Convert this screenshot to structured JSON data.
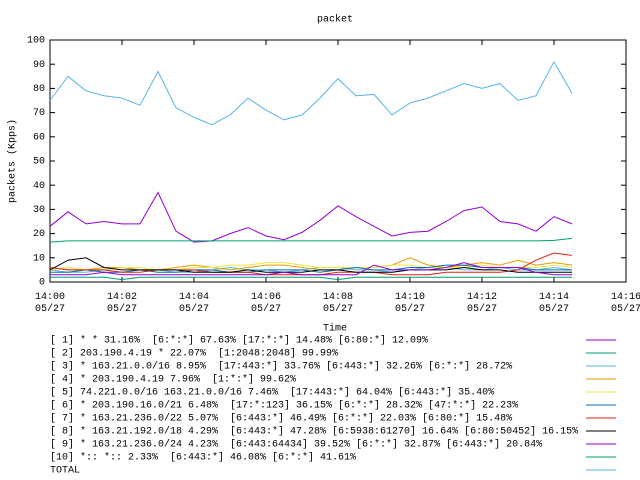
{
  "chart_data": {
    "type": "line",
    "title": "packet",
    "ylabel": "packets (Kpps)",
    "xlabel": "Time",
    "x": [
      "14:00:00",
      "14:00:30",
      "14:01:00",
      "14:01:30",
      "14:02:00",
      "14:02:30",
      "14:03:00",
      "14:03:30",
      "14:04:00",
      "14:04:30",
      "14:05:00",
      "14:05:30",
      "14:06:00",
      "14:06:30",
      "14:07:00",
      "14:07:30",
      "14:08:00",
      "14:08:30",
      "14:09:00",
      "14:09:30",
      "14:10:00",
      "14:10:30",
      "14:11:00",
      "14:11:30",
      "14:12:00",
      "14:12:30",
      "14:13:00",
      "14:13:30",
      "14:14:00",
      "14:14:30"
    ],
    "xlim": [
      "14:00:00",
      "14:16:00"
    ],
    "xticks": [
      {
        "value": "14:00:00",
        "label": "14:00\n05/27"
      },
      {
        "value": "14:02:00",
        "label": "14:02\n05/27"
      },
      {
        "value": "14:04:00",
        "label": "14:04\n05/27"
      },
      {
        "value": "14:06:00",
        "label": "14:06\n05/27"
      },
      {
        "value": "14:08:00",
        "label": "14:08\n05/27"
      },
      {
        "value": "14:10:00",
        "label": "14:10\n05/27"
      },
      {
        "value": "14:12:00",
        "label": "14:12\n05/27"
      },
      {
        "value": "14:14:00",
        "label": "14:14\n05/27"
      },
      {
        "value": "14:16:00",
        "label": "14:16\n05/27"
      }
    ],
    "ylim": [
      0,
      100
    ],
    "yticks": [
      0,
      10,
      20,
      30,
      40,
      50,
      60,
      70,
      80,
      90,
      100
    ],
    "series": [
      {
        "name": "[ 1] * * 31.16%  [6:*:*] 67.63% [17:*:*] 14.48% [6:80:*] 12.09%",
        "color": "#9400d3",
        "values": [
          23,
          29,
          24,
          25,
          24,
          24,
          37,
          21,
          16.5,
          17,
          20,
          22.5,
          19,
          17.5,
          20.5,
          25.5,
          31.5,
          27,
          23,
          19,
          20.5,
          21,
          25,
          29.5,
          31,
          25,
          24,
          21,
          27,
          24
        ]
      },
      {
        "name": "[ 2] 203.190.4.19 * 22.07%  [1:2048:2048] 99.99%",
        "color": "#009e73",
        "values": [
          16.5,
          17,
          17,
          17,
          17,
          17,
          17,
          17,
          17,
          17,
          17,
          17,
          17,
          17,
          17,
          17,
          17,
          17,
          17,
          17,
          17,
          17,
          17,
          17,
          17,
          17,
          17,
          17,
          17.2,
          18
        ]
      },
      {
        "name": "[ 3] * 163.21.0.0/16 8.95%  [17:443:*] 33.76% [6:443:*] 32.26% [6:*:*] 28.72%",
        "color": "#56b4e9",
        "values": [
          5,
          4,
          4,
          5,
          6,
          5,
          5,
          4,
          4,
          5,
          6,
          5,
          5,
          4,
          5,
          6,
          6,
          5,
          5,
          4,
          5,
          6,
          6,
          5,
          5,
          6,
          5,
          5,
          6,
          5
        ]
      },
      {
        "name": "[ 4] * 203.190.4.19 7.96%  [1:*:*] 99.62%",
        "color": "#e69f00",
        "values": [
          6,
          5,
          5,
          6,
          6,
          5,
          5,
          6,
          7,
          6,
          5,
          6,
          7,
          7,
          6,
          5,
          5,
          6,
          6,
          7,
          10,
          7,
          6,
          7,
          8,
          7,
          9,
          7,
          8,
          7
        ]
      },
      {
        "name": "[ 5] 74.221.0.0/16 163.21.0.0/16 7.46%  [17:443:*] 64.04% [6:443:*] 35.40%",
        "color": "#f0e442",
        "values": [
          5,
          6,
          5,
          5,
          6,
          6,
          5,
          5,
          6,
          6,
          7,
          7,
          8,
          8,
          7,
          6,
          6,
          6,
          6,
          7,
          7,
          6,
          6,
          6,
          7,
          6,
          6,
          6,
          7,
          6
        ]
      },
      {
        "name": "[ 6] * 203.190.16.0/21 6.48%  [17:*:123] 36.15% [6:*:*] 28.32% [47:*:*] 22.23%",
        "color": "#0072b2",
        "values": [
          4,
          4,
          5,
          4,
          4,
          5,
          4,
          4,
          5,
          5,
          4,
          4,
          5,
          5,
          5,
          4,
          5,
          6,
          5,
          5,
          6,
          6,
          7,
          7,
          6,
          6,
          6,
          5,
          5,
          5
        ]
      },
      {
        "name": "[ 7] * 163.21.236.0/22 5.07%  [6:443:*] 46.49% [6:*:*] 22.03% [6:80:*] 15.48%",
        "color": "#e51e10",
        "values": [
          6,
          5,
          5,
          5,
          4,
          4,
          5,
          5,
          5,
          4,
          4,
          4,
          3,
          3,
          3,
          3,
          4,
          4,
          4,
          3,
          3,
          3,
          4,
          4,
          4,
          4,
          5,
          9,
          12,
          11
        ]
      },
      {
        "name": "[ 8] * 163.21.192.0/18 4.29%  [6:443:*] 47.28% [6:5938:61270] 16.64% [6:80:50452] 16.15%",
        "color": "#000000",
        "values": [
          5,
          9,
          10,
          6,
          5,
          5,
          5,
          5,
          4,
          4,
          4,
          5,
          4,
          4,
          4,
          5,
          5,
          4,
          4,
          4,
          5,
          5,
          5,
          6,
          5,
          5,
          4,
          4,
          4,
          4
        ]
      },
      {
        "name": "[ 9] * 163.21.236.0/24 4.23%  [6:443:64434] 39.52% [6:*:*] 32.87% [6:443:*] 20.84%",
        "color": "#9400d3",
        "values": [
          3,
          3,
          3,
          4,
          3,
          3,
          3,
          3,
          3,
          3,
          3,
          3,
          3,
          4,
          3,
          3,
          3,
          3,
          7,
          5,
          5,
          5,
          6,
          8,
          6,
          6,
          6,
          4,
          3,
          3
        ]
      },
      {
        "name": "[10] *:: *:: 2.33%  [6:443:*] 46.08% [6:*:*] 41.61%",
        "color": "#009e73",
        "values": [
          2,
          2,
          2,
          2,
          1,
          2,
          2,
          2,
          2,
          2,
          2,
          2,
          2,
          2,
          2,
          2,
          1,
          2,
          2,
          2,
          2,
          2,
          2,
          2,
          2,
          2,
          2,
          2,
          2,
          2
        ]
      },
      {
        "name": "TOTAL",
        "color": "#56b4e9",
        "values": [
          75,
          85,
          79,
          77,
          76,
          73,
          87,
          72,
          68,
          65,
          69,
          76,
          71,
          67,
          69,
          76,
          84,
          77,
          77.5,
          69,
          74,
          76,
          79,
          82,
          80,
          82,
          75,
          77,
          91,
          78
        ]
      }
    ]
  }
}
